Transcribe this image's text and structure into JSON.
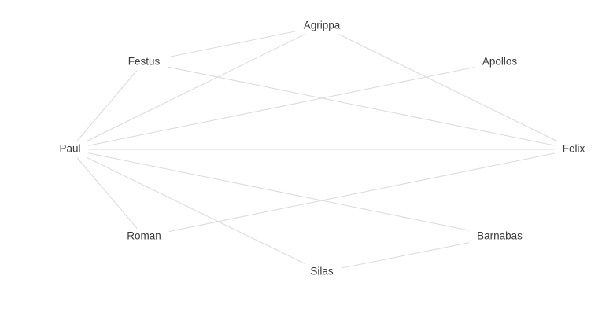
{
  "graph": {
    "nodes": [
      {
        "id": "agrippa",
        "label": "Agrippa"
      },
      {
        "id": "festus",
        "label": "Festus"
      },
      {
        "id": "apollos",
        "label": "Apollos"
      },
      {
        "id": "paul",
        "label": "Paul"
      },
      {
        "id": "felix",
        "label": "Felix"
      },
      {
        "id": "roman",
        "label": "Roman"
      },
      {
        "id": "barnabas",
        "label": "Barnabas"
      },
      {
        "id": "silas",
        "label": "Silas"
      }
    ],
    "edges": [
      [
        "festus",
        "agrippa"
      ],
      [
        "paul",
        "agrippa"
      ],
      [
        "agrippa",
        "felix"
      ],
      [
        "paul",
        "festus"
      ],
      [
        "festus",
        "felix"
      ],
      [
        "paul",
        "apollos"
      ],
      [
        "paul",
        "felix"
      ],
      [
        "paul",
        "roman"
      ],
      [
        "paul",
        "barnabas"
      ],
      [
        "paul",
        "silas"
      ],
      [
        "roman",
        "felix"
      ],
      [
        "silas",
        "barnabas"
      ]
    ],
    "colors": {
      "edge": "#d9d9d9",
      "label": "#3a3a3a",
      "background": "#ffffff"
    }
  }
}
